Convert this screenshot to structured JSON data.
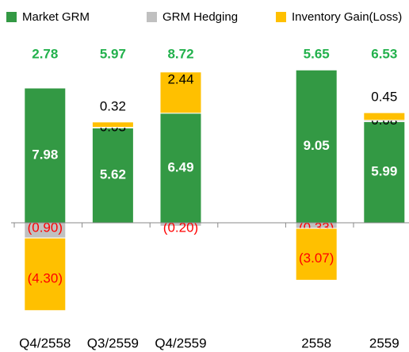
{
  "chart_data": {
    "type": "stacked-bar",
    "categories": [
      "Q4/2558",
      "Q3/2559",
      "Q4/2559",
      null,
      "2558",
      "2559"
    ],
    "series": [
      {
        "name": "Market GRM",
        "color": "#339944",
        "values": [
          7.98,
          5.62,
          6.49,
          null,
          9.05,
          5.99
        ]
      },
      {
        "name": "GRM Hedging",
        "color": "#c0c0c0",
        "values": [
          -0.9,
          0.03,
          -0.2,
          null,
          -0.33,
          0.08
        ],
        "value_labels": [
          "(0.90)",
          "0.03",
          "(0.20)",
          null,
          "(0.33)",
          "0.08"
        ]
      },
      {
        "name": "Inventory Gain(Loss)",
        "color": "#ffc000",
        "values": [
          -4.3,
          0.32,
          2.44,
          null,
          -3.07,
          0.45
        ],
        "value_labels": [
          "(4.30)",
          "0.32",
          "2.44",
          null,
          "(3.07)",
          "0.45"
        ]
      }
    ],
    "totals": [
      2.78,
      5.97,
      8.72,
      null,
      5.65,
      6.53
    ]
  }
}
